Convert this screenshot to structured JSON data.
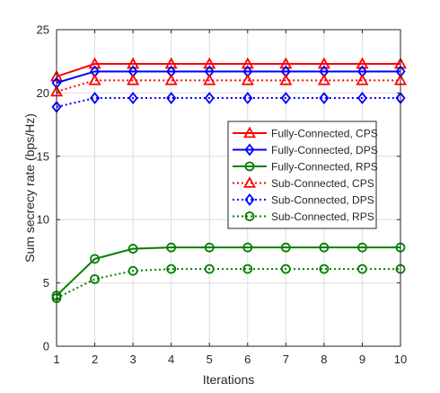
{
  "chart_data": {
    "type": "line",
    "xlabel": "Iterations",
    "ylabel": "Sum secrecy rate (bps/Hz)",
    "xlim": [
      1,
      10
    ],
    "ylim": [
      0,
      25
    ],
    "x_ticks": [
      1,
      2,
      3,
      4,
      5,
      6,
      7,
      8,
      9,
      10
    ],
    "y_ticks": [
      0,
      5,
      10,
      15,
      20,
      25
    ],
    "grid": true,
    "legend_position": "right-middle",
    "x": [
      1,
      2,
      3,
      4,
      5,
      6,
      7,
      8,
      9,
      10
    ],
    "series": [
      {
        "name": "Fully-Connected, CPS",
        "color": "#ff0000",
        "marker": "triangle",
        "line_style": "solid",
        "values": [
          21.3,
          22.3,
          22.3,
          22.3,
          22.3,
          22.3,
          22.3,
          22.3,
          22.3,
          22.3
        ]
      },
      {
        "name": "Fully-Connected, DPS",
        "color": "#0000ff",
        "marker": "diamond",
        "line_style": "solid",
        "values": [
          20.8,
          21.7,
          21.7,
          21.7,
          21.7,
          21.7,
          21.7,
          21.7,
          21.7,
          21.7
        ]
      },
      {
        "name": "Fully-Connected, RPS",
        "color": "#008000",
        "marker": "circle",
        "line_style": "solid",
        "values": [
          4.0,
          6.9,
          7.7,
          7.8,
          7.8,
          7.8,
          7.8,
          7.8,
          7.8,
          7.8
        ]
      },
      {
        "name": "Sub-Connected, CPS",
        "color": "#ff0000",
        "marker": "triangle",
        "line_style": "dotted",
        "values": [
          20.1,
          21.0,
          21.0,
          21.0,
          21.0,
          21.0,
          21.0,
          21.0,
          21.0,
          21.0
        ]
      },
      {
        "name": "Sub-Connected, DPS",
        "color": "#0000ff",
        "marker": "diamond",
        "line_style": "dotted",
        "values": [
          18.9,
          19.6,
          19.6,
          19.6,
          19.6,
          19.6,
          19.6,
          19.6,
          19.6,
          19.6
        ]
      },
      {
        "name": "Sub-Connected, RPS",
        "color": "#008000",
        "marker": "circle",
        "line_style": "dotted",
        "values": [
          3.8,
          5.3,
          5.95,
          6.1,
          6.1,
          6.1,
          6.1,
          6.1,
          6.1,
          6.1
        ]
      }
    ]
  }
}
